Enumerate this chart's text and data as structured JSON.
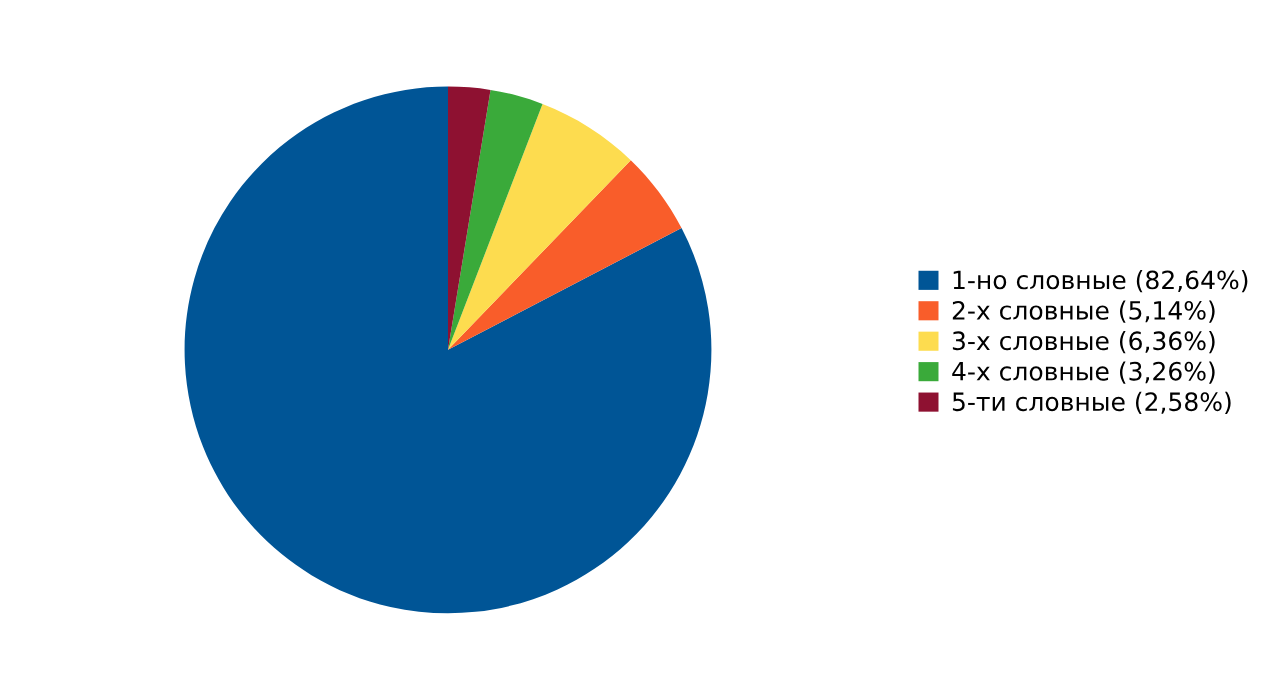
{
  "chart_data": {
    "type": "pie",
    "categories": [
      "1-но словные (82,64%)",
      "2-х словные (5,14%)",
      "3-х словные (6,36%)",
      "4-х словные (3,26%)",
      "5-ти словные (2,58%)"
    ],
    "values": [
      82.64,
      5.14,
      6.36,
      3.26,
      2.58
    ],
    "colors": [
      "#005596",
      "#f95d2a",
      "#fddc4f",
      "#3aaa3a",
      "#8e1131"
    ],
    "legend": "right"
  }
}
